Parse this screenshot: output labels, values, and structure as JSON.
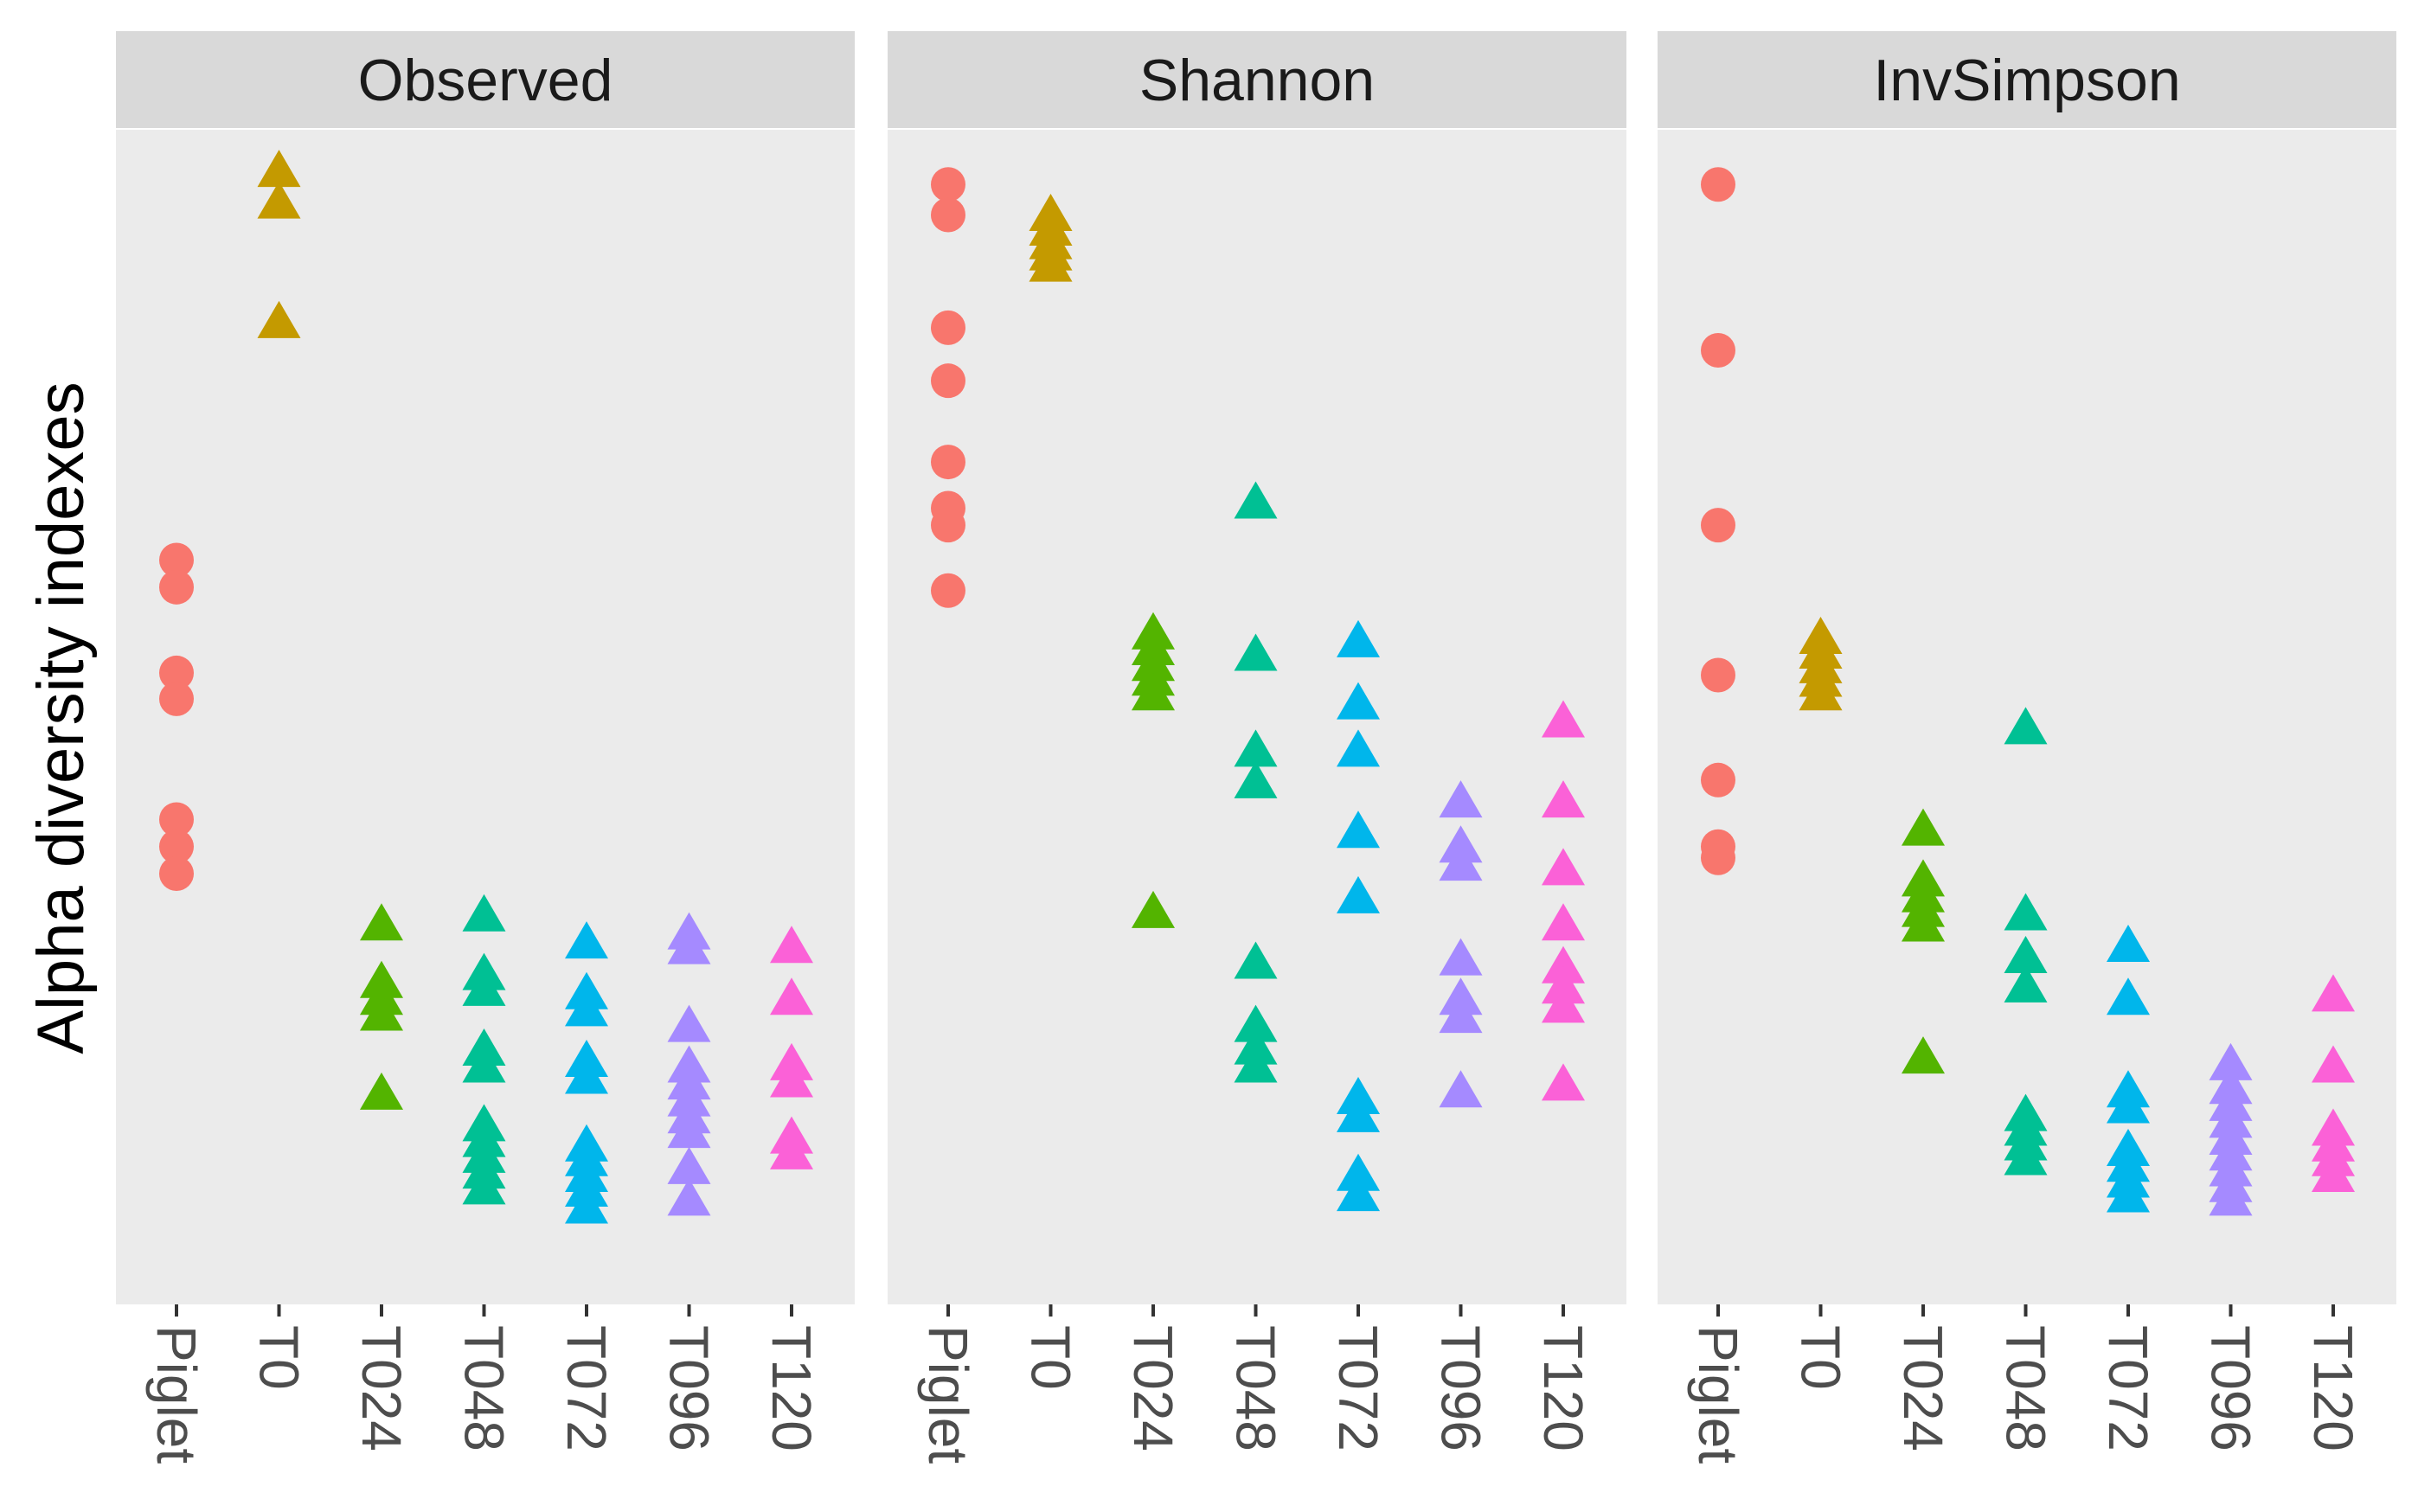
{
  "chart_data": {
    "type": "scatter",
    "ylabel": "Alpha diversity indexes",
    "categories": [
      "Piglet",
      "T0",
      "T024",
      "T048",
      "T072",
      "T096",
      "T120"
    ],
    "colors": {
      "Piglet": "#F8766D",
      "T0": "#C49A00",
      "T024": "#53B400",
      "T048": "#00C094",
      "T072": "#00B6EB",
      "T096": "#A58AFF",
      "T120": "#FB61D7"
    },
    "shapes": {
      "Piglet": "circle",
      "T0": "triangle",
      "T024": "triangle",
      "T048": "triangle",
      "T072": "triangle",
      "T096": "triangle",
      "T120": "triangle"
    },
    "panel_background": "#EBEBEB",
    "strip_background": "#D9D9D9",
    "facets": [
      {
        "title": "Observed",
        "ylim": [
          0,
          1
        ],
        "points": {
          "Piglet": [
            0.62,
            0.596,
            0.52,
            0.497,
            0.39,
            0.366,
            0.342
          ],
          "T0": [
            0.964,
            0.936,
            0.83
          ],
          "T024": [
            0.296,
            0.245,
            0.23,
            0.216,
            0.146
          ],
          "T048": [
            0.304,
            0.252,
            0.238,
            0.185,
            0.17,
            0.118,
            0.104,
            0.09,
            0.076,
            0.062
          ],
          "T072": [
            0.28,
            0.235,
            0.22,
            0.175,
            0.16,
            0.1,
            0.087,
            0.073,
            0.06,
            0.045
          ],
          "T096": [
            0.288,
            0.275,
            0.206,
            0.17,
            0.155,
            0.14,
            0.125,
            0.112,
            0.08,
            0.052
          ],
          "T120": [
            0.276,
            0.23,
            0.172,
            0.157,
            0.107,
            0.093
          ]
        }
      },
      {
        "title": "Shannon",
        "ylim": [
          0,
          1
        ],
        "points": {
          "Piglet": [
            0.953,
            0.926,
            0.826,
            0.779,
            0.707,
            0.666,
            0.651,
            0.593
          ],
          "T0": [
            0.925,
            0.912,
            0.9,
            0.89,
            0.88
          ],
          "T024": [
            0.554,
            0.54,
            0.526,
            0.513,
            0.5,
            0.307
          ],
          "T048": [
            0.67,
            0.535,
            0.45,
            0.422,
            0.262,
            0.206,
            0.186,
            0.17
          ],
          "T072": [
            0.547,
            0.492,
            0.45,
            0.378,
            0.32,
            0.142,
            0.126,
            0.074,
            0.056
          ],
          "T096": [
            0.405,
            0.365,
            0.349,
            0.265,
            0.23,
            0.214,
            0.148
          ],
          "T120": [
            0.476,
            0.405,
            0.345,
            0.296,
            0.258,
            0.24,
            0.223,
            0.154
          ]
        }
      },
      {
        "title": "InvSimpson",
        "ylim": [
          0,
          1
        ],
        "points": {
          "Piglet": [
            0.953,
            0.806,
            0.651,
            0.518,
            0.425,
            0.366,
            0.356
          ],
          "T0": [
            0.55,
            0.537,
            0.524,
            0.512,
            0.5
          ],
          "T024": [
            0.38,
            0.335,
            0.321,
            0.308,
            0.295,
            0.178
          ],
          "T048": [
            0.47,
            0.305,
            0.267,
            0.241,
            0.127,
            0.114,
            0.101,
            0.088
          ],
          "T072": [
            0.277,
            0.23,
            0.148,
            0.134,
            0.096,
            0.082,
            0.068,
            0.055
          ],
          "T096": [
            0.172,
            0.151,
            0.136,
            0.121,
            0.106,
            0.092,
            0.078,
            0.064,
            0.052
          ],
          "T120": [
            0.233,
            0.17,
            0.114,
            0.1,
            0.087,
            0.073
          ]
        }
      }
    ]
  }
}
